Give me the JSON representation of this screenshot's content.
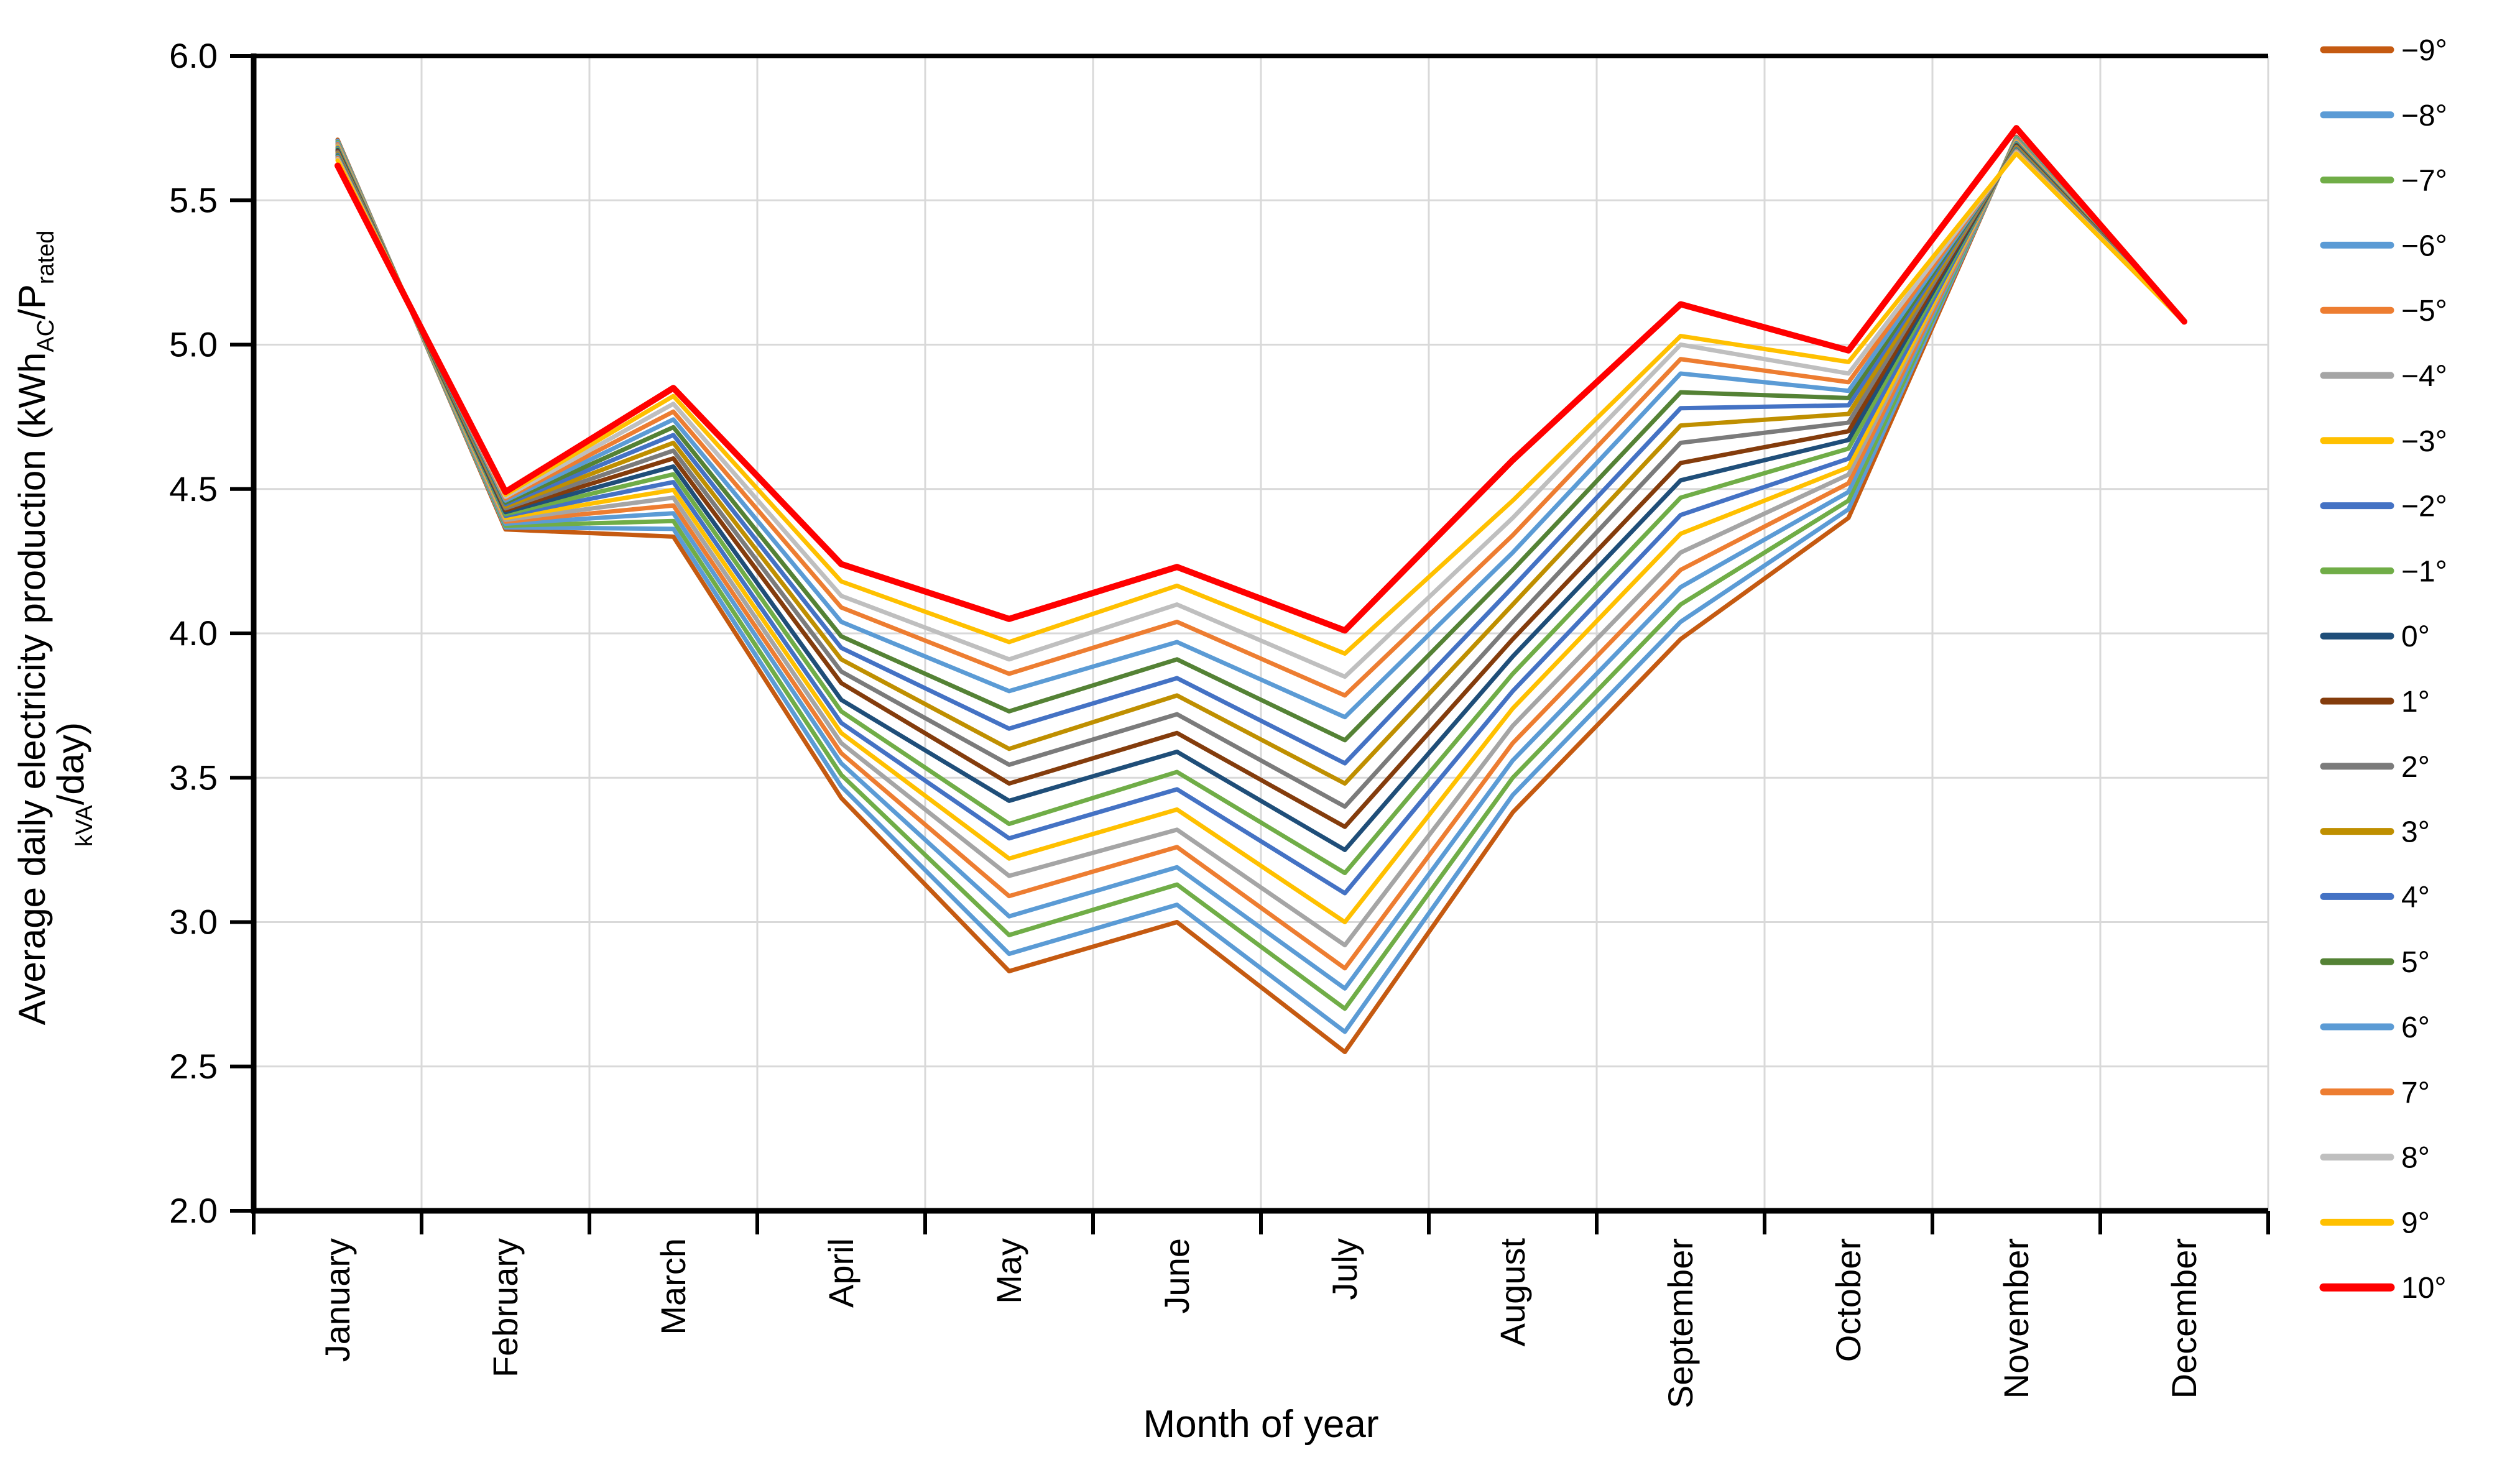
{
  "page": {
    "background": "#FFFFFF"
  },
  "chart_data": {
    "type": "line",
    "title": "",
    "xlabel": "Month of year",
    "ylabel_line1": [
      {
        "t": "Average daily electricity production (kWh"
      },
      {
        "t": "AC",
        "sub": true
      },
      {
        "t": "/P"
      },
      {
        "t": "rated",
        "sub": true
      }
    ],
    "ylabel_line2": [
      {
        "t": "kVA",
        "sub": true
      },
      {
        "t": "/day)"
      }
    ],
    "categories": [
      "January",
      "February",
      "March",
      "April",
      "May",
      "June",
      "July",
      "August",
      "September",
      "October",
      "November",
      "December"
    ],
    "ylim": [
      2.0,
      6.0
    ],
    "ystep": 0.5,
    "ytick_labels": [
      "2.0",
      "2.5",
      "3.0",
      "3.5",
      "4.0",
      "4.5",
      "5.0",
      "5.5",
      "6.0"
    ],
    "grid": true,
    "legend_position": "right",
    "axis_color": "#000000",
    "grid_color": "#D9D9D9",
    "series": [
      {
        "name": "−9°",
        "color": "#C55A11",
        "width": 7,
        "values": [
          5.71,
          4.36,
          4.335,
          3.43,
          2.83,
          3.0,
          2.55,
          3.38,
          3.98,
          4.4,
          5.72,
          5.078
        ]
      },
      {
        "name": "−8°",
        "color": "#5B9BD5",
        "width": 7,
        "values": [
          5.706,
          4.367,
          4.362,
          3.47,
          2.89,
          3.06,
          2.62,
          3.44,
          4.04,
          4.43,
          5.717,
          5.078
        ]
      },
      {
        "name": "−7°",
        "color": "#70AD47",
        "width": 7,
        "values": [
          5.702,
          4.373,
          4.389,
          3.51,
          2.955,
          3.13,
          2.7,
          3.5,
          4.1,
          4.46,
          5.714,
          5.078
        ]
      },
      {
        "name": "−6°",
        "color": "#5B9BD5",
        "width": 7,
        "values": [
          5.698,
          4.38,
          4.416,
          3.55,
          3.02,
          3.19,
          2.77,
          3.56,
          4.16,
          4.49,
          5.71,
          5.078
        ]
      },
      {
        "name": "−5°",
        "color": "#ED7D31",
        "width": 7,
        "values": [
          5.694,
          4.387,
          4.443,
          3.585,
          3.09,
          3.26,
          2.84,
          3.62,
          4.22,
          4.52,
          5.707,
          5.078
        ]
      },
      {
        "name": "−4°",
        "color": "#A5A5A5",
        "width": 7,
        "values": [
          5.69,
          4.393,
          4.47,
          3.62,
          3.16,
          3.32,
          2.92,
          3.68,
          4.28,
          4.55,
          5.704,
          5.078
        ]
      },
      {
        "name": "−3°",
        "color": "#FFC000",
        "width": 7,
        "values": [
          5.686,
          4.4,
          4.497,
          3.655,
          3.22,
          3.39,
          3.0,
          3.74,
          4.345,
          4.575,
          5.701,
          5.078
        ]
      },
      {
        "name": "−2°",
        "color": "#4472C4",
        "width": 7,
        "values": [
          5.682,
          4.407,
          4.524,
          3.69,
          3.29,
          3.46,
          3.1,
          3.8,
          4.41,
          4.605,
          5.698,
          5.078
        ]
      },
      {
        "name": "−1°",
        "color": "#70AD47",
        "width": 7,
        "values": [
          5.678,
          4.413,
          4.551,
          3.73,
          3.34,
          3.52,
          3.17,
          3.86,
          4.47,
          4.64,
          5.694,
          5.078
        ]
      },
      {
        "name": "0°",
        "color": "#1F4E79",
        "width": 7,
        "values": [
          5.674,
          4.42,
          4.578,
          3.77,
          3.42,
          3.59,
          3.25,
          3.92,
          4.53,
          4.67,
          5.691,
          5.078
        ]
      },
      {
        "name": "1°",
        "color": "#843C0C",
        "width": 7,
        "values": [
          5.67,
          4.427,
          4.606,
          3.828,
          3.48,
          3.655,
          3.33,
          3.98,
          4.59,
          4.7,
          5.688,
          5.078
        ]
      },
      {
        "name": "2°",
        "color": "#7B7B7B",
        "width": 7,
        "values": [
          5.666,
          4.433,
          4.633,
          3.868,
          3.545,
          3.72,
          3.4,
          4.04,
          4.66,
          4.73,
          5.685,
          5.078
        ]
      },
      {
        "name": "3°",
        "color": "#BF8F00",
        "width": 7,
        "values": [
          5.662,
          4.44,
          4.66,
          3.91,
          3.6,
          3.785,
          3.48,
          4.1,
          4.72,
          4.76,
          5.682,
          5.078
        ]
      },
      {
        "name": "4°",
        "color": "#4472C4",
        "width": 7,
        "values": [
          5.658,
          4.447,
          4.687,
          3.95,
          3.67,
          3.845,
          3.55,
          4.16,
          4.78,
          4.79,
          5.678,
          5.078
        ]
      },
      {
        "name": "5°",
        "color": "#548235",
        "width": 7,
        "values": [
          5.654,
          4.453,
          4.714,
          3.99,
          3.73,
          3.91,
          3.63,
          4.22,
          4.835,
          4.815,
          5.675,
          5.078
        ]
      },
      {
        "name": "6°",
        "color": "#5B9BD5",
        "width": 7,
        "values": [
          5.65,
          4.46,
          4.741,
          4.04,
          3.8,
          3.97,
          3.71,
          4.28,
          4.9,
          4.84,
          5.672,
          5.078
        ]
      },
      {
        "name": "7°",
        "color": "#ED7D31",
        "width": 7,
        "values": [
          5.646,
          4.467,
          4.768,
          4.09,
          3.86,
          4.04,
          3.785,
          4.34,
          4.95,
          4.87,
          5.669,
          5.078
        ]
      },
      {
        "name": "8°",
        "color": "#BFBFBF",
        "width": 7,
        "values": [
          5.642,
          4.473,
          4.795,
          4.13,
          3.91,
          4.1,
          3.85,
          4.4,
          5.0,
          4.9,
          5.666,
          5.078
        ]
      },
      {
        "name": "9°",
        "color": "#FFC000",
        "width": 7,
        "values": [
          5.638,
          4.48,
          4.822,
          4.18,
          3.97,
          4.165,
          3.93,
          4.46,
          5.03,
          4.94,
          5.662,
          5.078
        ]
      },
      {
        "name": "10°",
        "color": "#FF0000",
        "width": 10,
        "values": [
          5.62,
          4.49,
          4.85,
          4.24,
          4.05,
          4.23,
          4.01,
          4.6,
          5.14,
          4.98,
          5.75,
          5.08
        ]
      }
    ]
  }
}
